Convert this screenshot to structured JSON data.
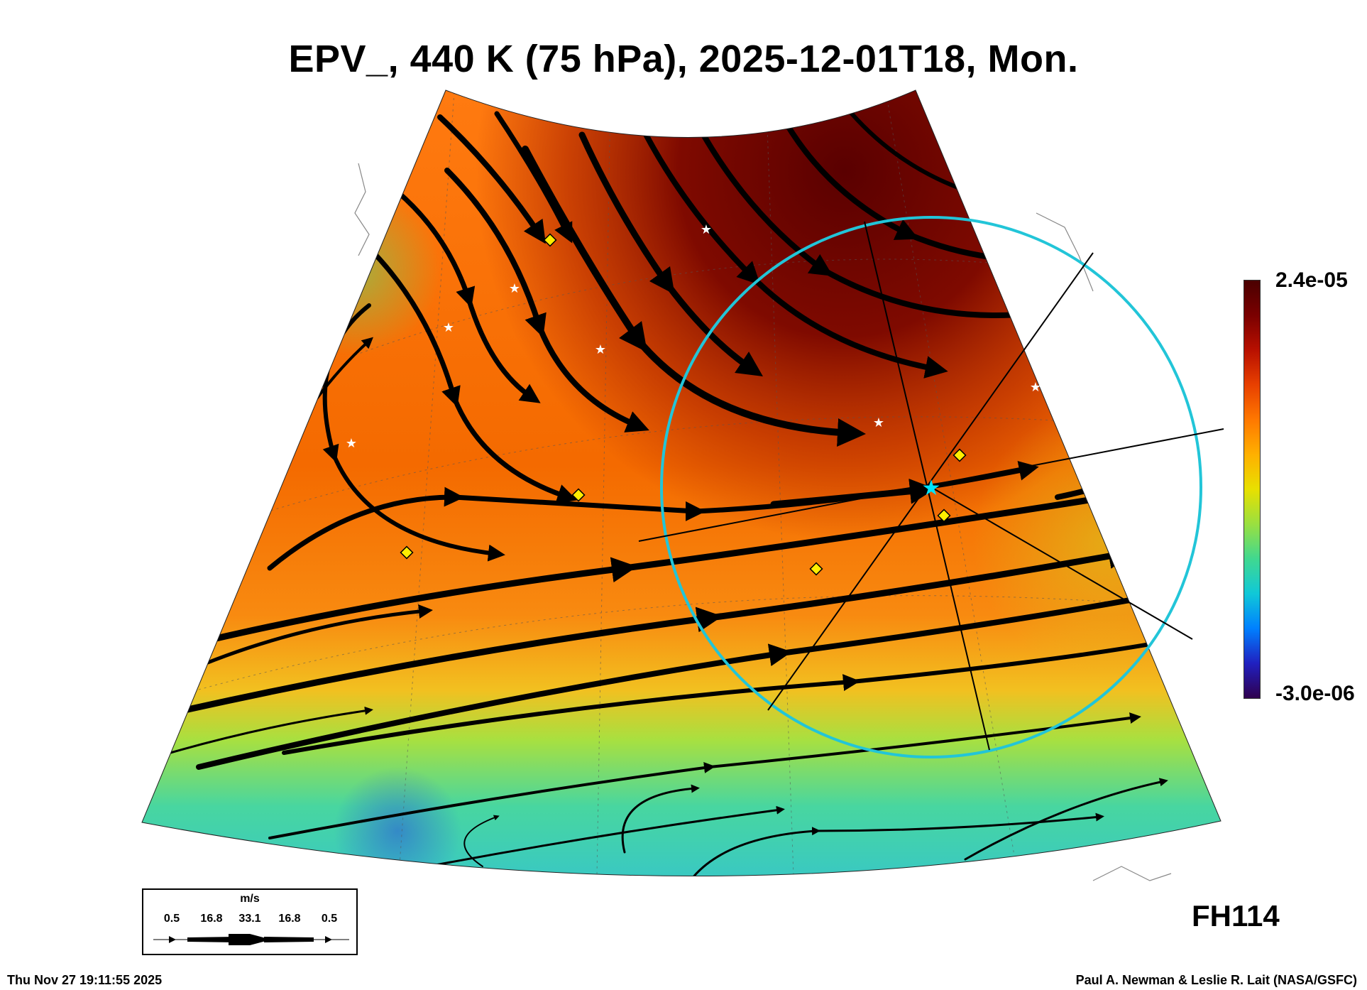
{
  "title": "EPV_, 440 K (75 hPa), 2025-12-01T18, Mon.",
  "colorbar": {
    "max_label": "2.4e-05",
    "min_label": "-3.0e-06",
    "colors": [
      "#30004e",
      "#2020c0",
      "#0080ff",
      "#10c8d8",
      "#40d890",
      "#9ae040",
      "#e8e000",
      "#ffb000",
      "#ff7800",
      "#e84000",
      "#b81000",
      "#7a0000",
      "#4a0000"
    ]
  },
  "forecast_hour": "FH114",
  "legend": {
    "unit": "m/s",
    "values": [
      "0.5",
      "16.8",
      "33.1",
      "16.8",
      "0.5"
    ]
  },
  "timestamp": "Thu Nov 27 19:11:55 2025",
  "credit": "Paul A. Newman & Leslie R. Lait (NASA/GSFC)",
  "markers": {
    "station_star_color": "#ffffff",
    "diamond_color": "#ffee00",
    "focus_star_color": "#00e5ff",
    "circle_color": "#22c5d8"
  }
}
